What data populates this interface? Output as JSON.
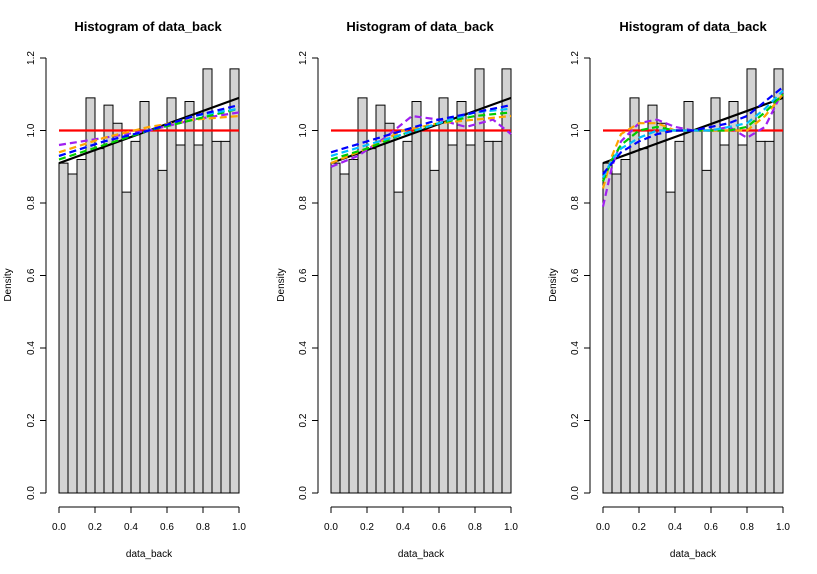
{
  "chart_data": [
    {
      "type": "bar",
      "title": "Histogram of data_back",
      "xlabel": "data_back",
      "ylabel": "Density",
      "xlim": [
        0,
        1
      ],
      "ylim": [
        0,
        1.2
      ],
      "x_ticks": [
        "0.0",
        "0.2",
        "0.4",
        "0.6",
        "0.8",
        "1.0"
      ],
      "y_ticks": [
        "0.0",
        "0.2",
        "0.4",
        "0.6",
        "0.8",
        "1.0",
        "1.2"
      ],
      "bin_width": 0.05,
      "values": [
        0.91,
        0.88,
        0.92,
        1.09,
        0.95,
        1.07,
        1.02,
        0.83,
        0.97,
        1.08,
        1.0,
        0.89,
        1.09,
        0.96,
        1.08,
        0.96,
        1.17,
        0.97,
        0.97,
        1.17
      ],
      "series": [
        {
          "color": "#ff0000",
          "style": "solid",
          "x": [
            0,
            1
          ],
          "y": [
            1.0,
            1.0
          ]
        },
        {
          "color": "#000000",
          "style": "solid",
          "x": [
            0,
            1
          ],
          "y": [
            0.91,
            1.09
          ]
        },
        {
          "color": "#a020f0",
          "style": "dashed",
          "x": [
            0,
            0.25,
            0.5,
            0.75,
            1
          ],
          "y": [
            0.96,
            0.98,
            1.0,
            1.03,
            1.05
          ]
        },
        {
          "color": "#ffa500",
          "style": "dashed",
          "x": [
            0,
            0.25,
            0.5,
            0.75,
            1
          ],
          "y": [
            0.94,
            0.98,
            1.01,
            1.03,
            1.04
          ]
        },
        {
          "color": "#00cc00",
          "style": "dashed",
          "x": [
            0,
            0.25,
            0.5,
            0.75,
            1
          ],
          "y": [
            0.92,
            0.96,
            1.0,
            1.03,
            1.06
          ]
        },
        {
          "color": "#00bfff",
          "style": "dashed",
          "x": [
            0,
            0.25,
            0.5,
            0.75,
            1
          ],
          "y": [
            0.93,
            0.97,
            1.0,
            1.04,
            1.06
          ]
        },
        {
          "color": "#0000ff",
          "style": "dashed",
          "x": [
            0,
            0.25,
            0.5,
            0.75,
            1
          ],
          "y": [
            0.93,
            0.97,
            1.0,
            1.04,
            1.07
          ]
        }
      ]
    },
    {
      "type": "bar",
      "title": "Histogram of data_back",
      "xlabel": "data_back",
      "ylabel": "Density",
      "xlim": [
        0,
        1
      ],
      "ylim": [
        0,
        1.2
      ],
      "x_ticks": [
        "0.0",
        "0.2",
        "0.4",
        "0.6",
        "0.8",
        "1.0"
      ],
      "y_ticks": [
        "0.0",
        "0.2",
        "0.4",
        "0.6",
        "0.8",
        "1.0",
        "1.2"
      ],
      "bin_width": 0.05,
      "values": [
        0.91,
        0.88,
        0.92,
        1.09,
        0.95,
        1.07,
        1.02,
        0.83,
        0.97,
        1.08,
        1.0,
        0.89,
        1.09,
        0.96,
        1.08,
        0.96,
        1.17,
        0.97,
        0.97,
        1.17
      ],
      "series": [
        {
          "color": "#ff0000",
          "style": "solid",
          "x": [
            0,
            1
          ],
          "y": [
            1.0,
            1.0
          ]
        },
        {
          "color": "#000000",
          "style": "solid",
          "x": [
            0,
            1
          ],
          "y": [
            0.91,
            1.09
          ]
        },
        {
          "color": "#a020f0",
          "style": "dashed",
          "x": [
            0,
            0.15,
            0.3,
            0.45,
            0.6,
            0.75,
            0.9,
            1
          ],
          "y": [
            0.9,
            0.93,
            0.98,
            1.04,
            1.03,
            1.01,
            1.03,
            0.99
          ]
        },
        {
          "color": "#ffa500",
          "style": "dashed",
          "x": [
            0,
            0.2,
            0.4,
            0.6,
            0.8,
            1
          ],
          "y": [
            0.91,
            0.95,
            1.0,
            1.02,
            1.03,
            1.04
          ]
        },
        {
          "color": "#00cc00",
          "style": "dashed",
          "x": [
            0,
            0.2,
            0.4,
            0.6,
            0.8,
            1
          ],
          "y": [
            0.92,
            0.95,
            0.99,
            1.02,
            1.04,
            1.05
          ]
        },
        {
          "color": "#00bfff",
          "style": "dashed",
          "x": [
            0,
            0.2,
            0.4,
            0.6,
            0.8,
            1
          ],
          "y": [
            0.93,
            0.96,
            0.99,
            1.02,
            1.05,
            1.06
          ]
        },
        {
          "color": "#0000ff",
          "style": "dashed",
          "x": [
            0,
            0.2,
            0.4,
            0.6,
            0.8,
            1
          ],
          "y": [
            0.94,
            0.97,
            1.0,
            1.03,
            1.05,
            1.07
          ]
        }
      ]
    },
    {
      "type": "bar",
      "title": "Histogram of data_back",
      "xlabel": "data_back",
      "ylabel": "Density",
      "xlim": [
        0,
        1
      ],
      "ylim": [
        0,
        1.2
      ],
      "x_ticks": [
        "0.0",
        "0.2",
        "0.4",
        "0.6",
        "0.8",
        "1.0"
      ],
      "y_ticks": [
        "0.0",
        "0.2",
        "0.4",
        "0.6",
        "0.8",
        "1.0",
        "1.2"
      ],
      "bin_width": 0.05,
      "values": [
        0.91,
        0.88,
        0.92,
        1.09,
        0.95,
        1.07,
        1.02,
        0.83,
        0.97,
        1.08,
        1.0,
        0.89,
        1.09,
        0.96,
        1.08,
        0.96,
        1.17,
        0.97,
        0.97,
        1.17
      ],
      "series": [
        {
          "color": "#ff0000",
          "style": "solid",
          "x": [
            0,
            1
          ],
          "y": [
            1.0,
            1.0
          ]
        },
        {
          "color": "#000000",
          "style": "solid",
          "x": [
            0,
            1
          ],
          "y": [
            0.91,
            1.09
          ]
        },
        {
          "color": "#a020f0",
          "style": "dashed",
          "x": [
            0,
            0.05,
            0.1,
            0.2,
            0.3,
            0.4,
            0.5,
            0.6,
            0.7,
            0.8,
            0.9,
            1
          ],
          "y": [
            0.79,
            0.9,
            0.97,
            1.02,
            1.03,
            1.01,
            1.0,
            1.0,
            1.01,
            0.98,
            1.01,
            1.11
          ]
        },
        {
          "color": "#ffa500",
          "style": "dashed",
          "x": [
            0,
            0.05,
            0.1,
            0.2,
            0.3,
            0.4,
            0.5,
            0.6,
            0.7,
            0.8,
            0.9,
            1
          ],
          "y": [
            0.84,
            0.93,
            0.99,
            1.02,
            1.02,
            1.0,
            1.0,
            1.0,
            1.0,
            1.0,
            1.04,
            1.1
          ]
        },
        {
          "color": "#00cc00",
          "style": "dashed",
          "x": [
            0,
            0.05,
            0.1,
            0.2,
            0.3,
            0.4,
            0.5,
            0.6,
            0.7,
            0.8,
            0.9,
            1
          ],
          "y": [
            0.86,
            0.92,
            0.96,
            1.0,
            1.01,
            1.0,
            1.0,
            1.0,
            1.0,
            1.01,
            1.05,
            1.1
          ]
        },
        {
          "color": "#00bfff",
          "style": "dashed",
          "x": [
            0,
            0.05,
            0.1,
            0.2,
            0.3,
            0.4,
            0.5,
            0.6,
            0.7,
            0.8,
            0.9,
            1
          ],
          "y": [
            0.87,
            0.92,
            0.95,
            0.98,
            1.0,
            1.0,
            1.0,
            1.0,
            1.01,
            1.02,
            1.06,
            1.11
          ]
        },
        {
          "color": "#0000ff",
          "style": "dashed",
          "x": [
            0,
            0.05,
            0.1,
            0.2,
            0.3,
            0.4,
            0.5,
            0.6,
            0.7,
            0.8,
            0.9,
            1
          ],
          "y": [
            0.88,
            0.91,
            0.94,
            0.97,
            0.99,
            1.0,
            1.0,
            1.01,
            1.02,
            1.04,
            1.08,
            1.12
          ]
        }
      ]
    }
  ]
}
